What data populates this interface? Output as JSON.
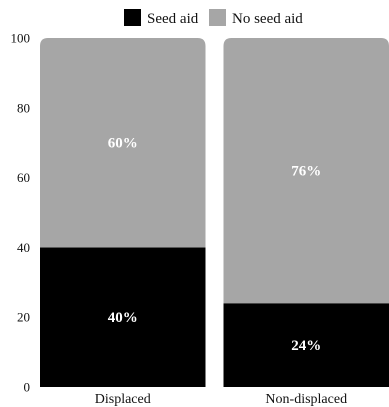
{
  "chart_data": {
    "type": "bar",
    "stacked": true,
    "percent": true,
    "title": "",
    "xlabel": "",
    "ylabel": "",
    "ylim": [
      0,
      100
    ],
    "yticks": [
      "0",
      "20",
      "40",
      "60",
      "80",
      "100"
    ],
    "categories": [
      "Displaced",
      "Non-displaced"
    ],
    "legend_position": "top-center",
    "series": [
      {
        "name": "Seed aid",
        "color": "#000000",
        "values": [
          40,
          24
        ],
        "labels": [
          "40%",
          "24%"
        ]
      },
      {
        "name": "No seed aid",
        "color": "#a6a6a6",
        "values": [
          60,
          76
        ],
        "labels": [
          "60%",
          "76%"
        ]
      }
    ],
    "grid": false
  }
}
